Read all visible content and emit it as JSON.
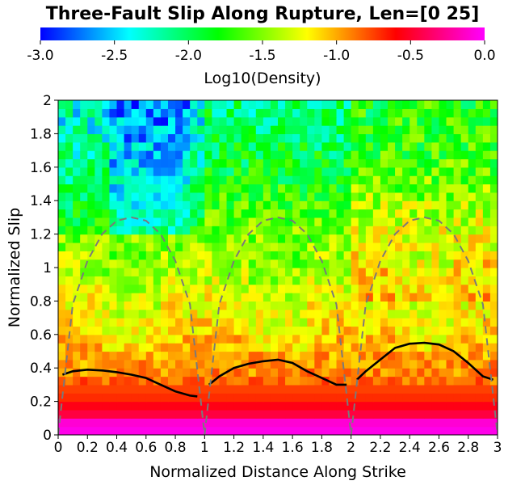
{
  "chart_data": {
    "type": "heatmap",
    "title": "Three-Fault Slip Along Rupture, Len=[0 25]",
    "xlabel": "Normalized Distance Along Strike",
    "ylabel": "Normalized Slip",
    "xlim": [
      0,
      3
    ],
    "ylim": [
      0,
      2
    ],
    "x_ticks": [
      "0",
      "0.2",
      "0.4",
      "0.6",
      "0.8",
      "1",
      "1.2",
      "1.4",
      "1.6",
      "1.8",
      "2",
      "2.2",
      "2.4",
      "2.6",
      "2.8",
      "3"
    ],
    "y_ticks": [
      "0",
      "0.2",
      "0.4",
      "0.6",
      "0.8",
      "1",
      "1.2",
      "1.4",
      "1.6",
      "1.8",
      "2"
    ],
    "colorbar": {
      "label": "Log10(Density)",
      "range": [
        -3.0,
        0.0
      ],
      "ticks": [
        "-3.0",
        "-2.5",
        "-2.0",
        "-1.5",
        "-1.0",
        "-0.5",
        "0.0"
      ],
      "colors": [
        "#0000ff",
        "#00ffff",
        "#00ff00",
        "#ffff00",
        "#ff0000",
        "#ff00ff"
      ]
    },
    "grid_resolution": {
      "x_bins": 60,
      "y_bins": 40
    },
    "density_profile_by_slip": [
      {
        "slip": 0.025,
        "log10_density": -0.05
      },
      {
        "slip": 0.075,
        "log10_density": -0.1
      },
      {
        "slip": 0.125,
        "log10_density": -0.45
      },
      {
        "slip": 0.175,
        "log10_density": -0.55
      },
      {
        "slip": 0.225,
        "log10_density": -0.7
      },
      {
        "slip": 0.275,
        "log10_density": -0.75
      },
      {
        "slip": 0.35,
        "log10_density": -0.9
      },
      {
        "slip": 0.5,
        "log10_density": -1.0
      },
      {
        "slip": 0.7,
        "log10_density": -1.15
      },
      {
        "slip": 0.9,
        "log10_density": -1.3
      },
      {
        "slip": 1.1,
        "log10_density": -1.45
      },
      {
        "slip": 1.3,
        "log10_density": -1.6
      },
      {
        "slip": 1.5,
        "log10_density": -1.8
      },
      {
        "slip": 1.7,
        "log10_density": -1.95
      },
      {
        "slip": 1.9,
        "log10_density": -2.05
      }
    ],
    "series": [
      {
        "style": "solid-black",
        "x": [
          0.03,
          0.1,
          0.2,
          0.3,
          0.4,
          0.5,
          0.6,
          0.7,
          0.8,
          0.9,
          0.95
        ],
        "y": [
          0.36,
          0.38,
          0.39,
          0.385,
          0.375,
          0.36,
          0.34,
          0.3,
          0.26,
          0.235,
          0.23
        ]
      },
      {
        "style": "solid-black",
        "x": [
          1.03,
          1.1,
          1.2,
          1.3,
          1.4,
          1.5,
          1.6,
          1.7,
          1.8,
          1.9,
          1.97
        ],
        "y": [
          0.3,
          0.35,
          0.4,
          0.425,
          0.44,
          0.45,
          0.43,
          0.38,
          0.34,
          0.3,
          0.3
        ]
      },
      {
        "style": "solid-black",
        "x": [
          2.04,
          2.1,
          2.2,
          2.3,
          2.4,
          2.5,
          2.6,
          2.7,
          2.8,
          2.9,
          2.97
        ],
        "y": [
          0.33,
          0.38,
          0.45,
          0.52,
          0.545,
          0.55,
          0.54,
          0.5,
          0.43,
          0.35,
          0.33
        ]
      },
      {
        "style": "dashed-gray",
        "x": [
          0.0,
          0.1,
          0.2,
          0.3,
          0.4,
          0.5,
          0.6,
          0.7,
          0.8,
          0.9,
          1.0
        ],
        "y": [
          0.0,
          0.78,
          1.04,
          1.2,
          1.28,
          1.3,
          1.28,
          1.2,
          1.04,
          0.78,
          0.0
        ]
      },
      {
        "style": "dashed-gray",
        "x": [
          1.0,
          1.1,
          1.2,
          1.3,
          1.4,
          1.5,
          1.6,
          1.7,
          1.8,
          1.9,
          2.0
        ],
        "y": [
          0.0,
          0.78,
          1.04,
          1.2,
          1.28,
          1.3,
          1.28,
          1.2,
          1.04,
          0.78,
          0.0
        ]
      },
      {
        "style": "dashed-gray",
        "x": [
          2.0,
          2.1,
          2.2,
          2.3,
          2.4,
          2.5,
          2.6,
          2.7,
          2.8,
          2.9,
          3.0
        ],
        "y": [
          0.0,
          0.78,
          1.04,
          1.2,
          1.28,
          1.3,
          1.28,
          1.2,
          1.04,
          0.78,
          0.0
        ]
      }
    ],
    "grid": false,
    "legend": "none"
  }
}
